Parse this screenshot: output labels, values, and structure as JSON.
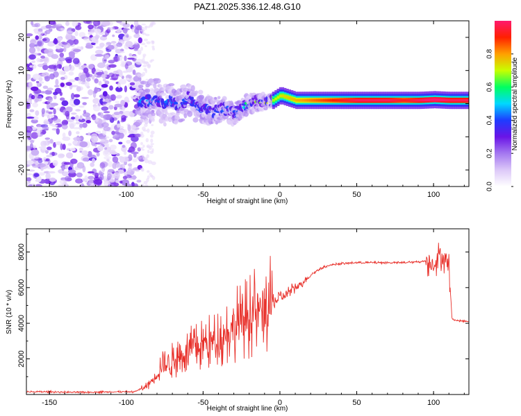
{
  "chart_data": [
    {
      "type": "heatmap",
      "title": "PAZ1.2025.336.12.48.G10",
      "xlabel": "Height of straight line (km)",
      "ylabel": "Frequency (Hz)",
      "xlim": [
        -165,
        123
      ],
      "ylim": [
        -25,
        25
      ],
      "xticks": [
        -150,
        -100,
        -50,
        0,
        50,
        100
      ],
      "yticks": [
        -20,
        -10,
        0,
        10,
        20
      ],
      "noise_region_x": [
        -165,
        -90
      ],
      "signal_track": {
        "x": [
          -92,
          -85,
          -80,
          -75,
          -70,
          -65,
          -60,
          -55,
          -50,
          -45,
          -40,
          -35,
          -30,
          -25,
          -20,
          -15,
          -10,
          -5,
          0,
          10,
          20,
          30,
          40,
          50,
          60,
          70,
          80,
          90,
          100,
          110,
          123
        ],
        "freq": [
          0.5,
          0.8,
          1.5,
          -0.5,
          1.0,
          -1.5,
          2.0,
          -0.5,
          -1.0,
          -2.5,
          -2.0,
          -1.5,
          -3.0,
          -1.0,
          0.0,
          0.5,
          0.5,
          1.0,
          2.5,
          1.0,
          1.0,
          1.0,
          1.0,
          1.0,
          1.0,
          1.0,
          1.0,
          1.0,
          1.2,
          1.0,
          1.0
        ],
        "amplitude": [
          0.3,
          0.35,
          0.3,
          0.3,
          0.3,
          0.35,
          0.3,
          0.3,
          0.35,
          0.3,
          0.3,
          0.35,
          0.3,
          0.45,
          0.5,
          0.55,
          0.6,
          0.6,
          0.65,
          0.7,
          0.75,
          0.8,
          0.85,
          0.9,
          0.9,
          0.9,
          0.85,
          0.9,
          0.95,
          0.9,
          0.9
        ]
      },
      "colorbar": {
        "label": "Normalized spectral amplitude",
        "range": [
          0,
          1
        ],
        "ticks": [
          "0.0",
          "0.2",
          "0.4",
          "0.6",
          "0.8"
        ],
        "colors": [
          "#ffffff",
          "#dcc8f8",
          "#a478f0",
          "#6a14e6",
          "#1e3cff",
          "#00d8ff",
          "#00ff60",
          "#c8ff00",
          "#ffa000",
          "#ff2000",
          "#ff1a6e"
        ]
      }
    },
    {
      "type": "line",
      "xlabel": "Height of straight line (km)",
      "ylabel": "SNR (10 * v/v)",
      "xlim": [
        -165,
        123
      ],
      "ylim": [
        0,
        9300
      ],
      "xticks": [
        -150,
        -100,
        -50,
        0,
        50,
        100
      ],
      "yticks": [
        2000,
        4000,
        6000,
        8000
      ],
      "series": [
        {
          "name": "SNR",
          "color": "#e8302a",
          "x": [
            -165,
            -150,
            -130,
            -110,
            -95,
            -88,
            -82,
            -78,
            -72,
            -68,
            -62,
            -58,
            -52,
            -48,
            -42,
            -38,
            -32,
            -28,
            -24,
            -20,
            -16,
            -12,
            -8,
            -4,
            0,
            5,
            10,
            15,
            20,
            25,
            30,
            35,
            40,
            50,
            60,
            70,
            80,
            90,
            96,
            100,
            104,
            108,
            110,
            112,
            115,
            123
          ],
          "y": [
            150,
            150,
            120,
            150,
            150,
            400,
            900,
            1500,
            1800,
            2000,
            2300,
            2500,
            2700,
            2900,
            3000,
            3300,
            3700,
            4000,
            4200,
            4400,
            4600,
            4700,
            4900,
            5200,
            5400,
            5700,
            6000,
            6300,
            6700,
            7000,
            7200,
            7300,
            7350,
            7400,
            7400,
            7400,
            7400,
            7450,
            7500,
            7300,
            7800,
            7600,
            7200,
            4250,
            4150,
            4100
          ]
        }
      ]
    }
  ]
}
